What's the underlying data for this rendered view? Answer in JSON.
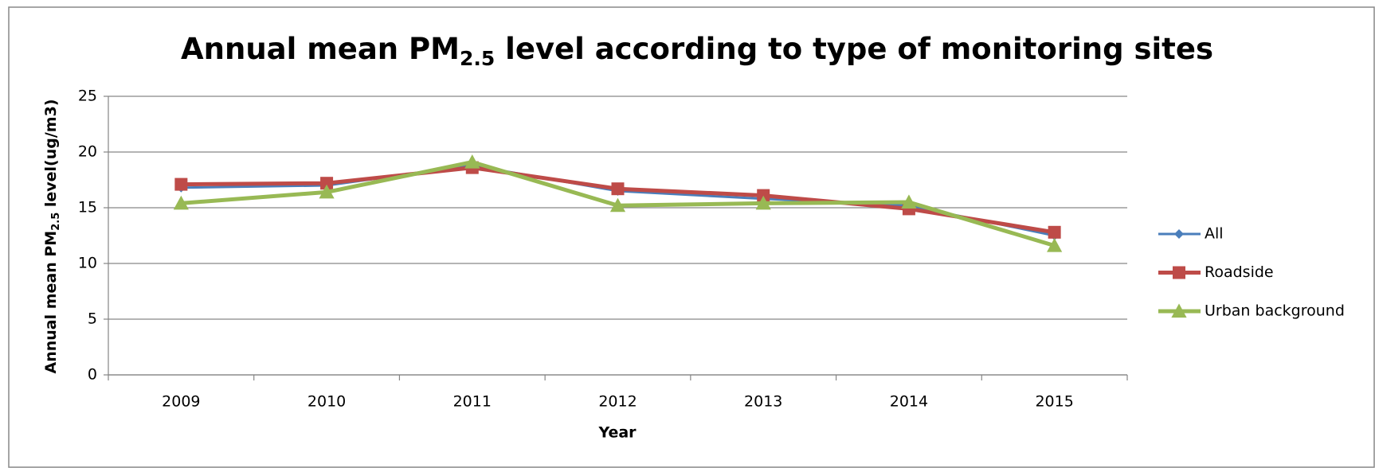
{
  "chart_data": {
    "type": "line",
    "title": [
      "Annual mean PM",
      "2.5",
      " level according to type of monitoring sites"
    ],
    "x_label": "Year",
    "y_label": [
      "Annual mean PM",
      "2.5",
      " level(ug/m3)"
    ],
    "categories": [
      "2009",
      "2010",
      "2011",
      "2012",
      "2013",
      "2014",
      "2015"
    ],
    "series": [
      {
        "name": "All",
        "color": "#4a7ebb",
        "marker": "diamond",
        "values": [
          16.8,
          17.0,
          18.8,
          16.5,
          15.8,
          15.2,
          12.5
        ]
      },
      {
        "name": "Roadside",
        "color": "#be4b48",
        "marker": "square",
        "values": [
          17.1,
          17.2,
          18.6,
          16.7,
          16.1,
          14.9,
          12.8
        ]
      },
      {
        "name": "Urban background",
        "color": "#98b954",
        "marker": "triangle",
        "values": [
          15.4,
          16.4,
          19.1,
          15.2,
          15.4,
          15.5,
          11.6
        ]
      }
    ],
    "ylim": [
      0,
      25
    ],
    "yticks": [
      0,
      5,
      10,
      15,
      20,
      25
    ],
    "grid": true,
    "legend": "right"
  }
}
